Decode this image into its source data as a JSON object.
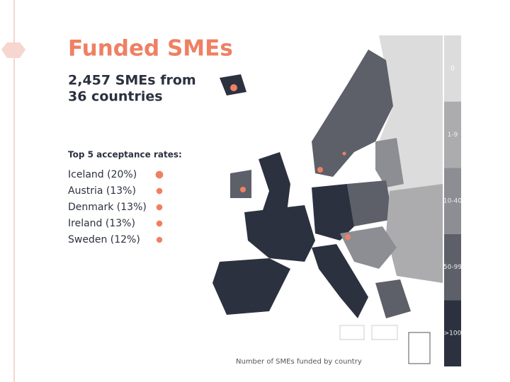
{
  "header": {
    "title": "Funded SMEs",
    "subtitle_lines": [
      "2,457 SMEs from",
      "36 countries"
    ]
  },
  "top_rates": {
    "heading": "Top 5 acceptance rates:",
    "items": [
      {
        "label": "Iceland (20%)",
        "rate": 20
      },
      {
        "label": "Austria (13%)",
        "rate": 13
      },
      {
        "label": "Denmark (13%)",
        "rate": 13
      },
      {
        "label": "Ireland (13%)",
        "rate": 13
      },
      {
        "label": "Sweden (12%)",
        "rate": 12
      }
    ],
    "dot_color": "#ef8064"
  },
  "legend": {
    "items": [
      {
        "label": "0",
        "color": "#dcdcdc"
      },
      {
        "label": "1-9",
        "color": "#acacaf"
      },
      {
        "label": "10-40",
        "color": "#8d8e93"
      },
      {
        "label": "50-99",
        "color": "#5d6069"
      },
      {
        "label": ">100",
        "color": "#2c3140"
      }
    ]
  },
  "caption": "Number of SMEs  funded by country"
}
